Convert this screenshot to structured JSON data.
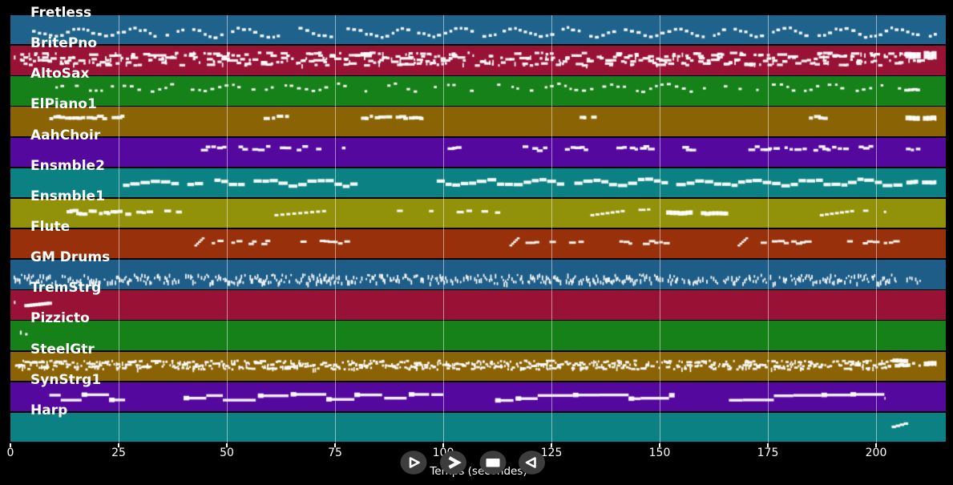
{
  "chart_data": {
    "type": "piano-roll",
    "title": "",
    "xlabel": "Temps (secondes)",
    "x_ticks": [
      0,
      25,
      50,
      75,
      100,
      125,
      150,
      175,
      200
    ],
    "xlim": [
      0,
      216
    ],
    "grid": true,
    "colors": {
      "background": "#000000",
      "note": "#ffffff",
      "grid": "rgba(255,255,255,0.5)"
    },
    "tracks": [
      {
        "name": "Fretless",
        "color": "#1f638c",
        "segments": [
          {
            "type": "melody",
            "t0": 5,
            "t1": 214,
            "y": 20,
            "amp": 5,
            "step": 1.3,
            "gap": 0.12,
            "w": 0.6,
            "h": 3.4
          }
        ]
      },
      {
        "name": "BritePno",
        "color": "#981236",
        "segments": [
          {
            "type": "ticks",
            "notes": [
              {
                "t": 0.8,
                "w": 2,
                "h": 5,
                "y": 12
              }
            ]
          },
          {
            "type": "chords",
            "t0": 2,
            "t1": 210.5,
            "y": 7,
            "spread": 16,
            "step": 1.0,
            "h": 3.2
          },
          {
            "type": "block",
            "t0": 206.8,
            "t1": 210.2,
            "y": 8,
            "h": 8
          },
          {
            "type": "block",
            "t0": 211,
            "t1": 213.8,
            "y": 7,
            "h": 10
          }
        ]
      },
      {
        "name": "AltoSax",
        "color": "#178119",
        "segments": [
          {
            "type": "melody",
            "t0": 9,
            "t1": 206,
            "y": 13,
            "amp": 4,
            "step": 1.5,
            "gap": 0.36,
            "w": 0.5,
            "h": 2.9
          },
          {
            "type": "block",
            "t0": 206.5,
            "t1": 210,
            "y": 15,
            "h": 3.5
          }
        ]
      },
      {
        "name": "ElPiano1",
        "color": "#8a6305",
        "segments": [
          {
            "type": "cluster",
            "t0": 9,
            "t1": 27,
            "y": 11,
            "h": 4,
            "step": 1.0,
            "jitter": 1.6,
            "gap": 0.15
          },
          {
            "type": "cluster",
            "t0": 58.5,
            "t1": 63.5,
            "y": 11,
            "h": 4,
            "step": 1.0,
            "jitter": 1.6,
            "gap": 0.15
          },
          {
            "type": "cluster",
            "t0": 81,
            "t1": 95,
            "y": 11,
            "h": 4,
            "step": 1.0,
            "jitter": 1.6,
            "gap": 0.15
          },
          {
            "type": "cluster",
            "t0": 131.5,
            "t1": 135,
            "y": 11,
            "h": 4,
            "step": 1.0,
            "jitter": 1.6,
            "gap": 0.1
          },
          {
            "type": "cluster",
            "t0": 184.5,
            "t1": 188,
            "y": 11,
            "h": 4,
            "step": 1.0,
            "jitter": 1.6,
            "gap": 0.1
          },
          {
            "type": "block",
            "t0": 206.8,
            "t1": 210,
            "y": 11,
            "h": 6
          },
          {
            "type": "block",
            "t0": 210.8,
            "t1": 213.8,
            "y": 11,
            "h": 6
          }
        ]
      },
      {
        "name": "AahChoir",
        "color": "#55089d",
        "segments": [
          {
            "type": "cluster",
            "t0": 44,
            "t1": 68,
            "y": 12,
            "h": 3.4,
            "step": 1.15,
            "jitter": 2.8,
            "gap": 0.3
          },
          {
            "type": "cluster",
            "t0": 69.5,
            "t1": 77,
            "y": 12,
            "h": 3.4,
            "step": 1.15,
            "jitter": 2.8,
            "gap": 0.3
          },
          {
            "type": "cluster",
            "t0": 101,
            "t1": 104,
            "y": 12,
            "h": 3.4,
            "step": 1.1,
            "jitter": 2,
            "gap": 0.2
          },
          {
            "type": "cluster",
            "t0": 117,
            "t1": 133.5,
            "y": 12,
            "h": 3.4,
            "step": 1.15,
            "jitter": 2.8,
            "gap": 0.3
          },
          {
            "type": "cluster",
            "t0": 140,
            "t1": 147.5,
            "y": 12,
            "h": 3.4,
            "step": 1.15,
            "jitter": 2.8,
            "gap": 0.3
          },
          {
            "type": "cluster",
            "t0": 154,
            "t1": 157.5,
            "y": 12,
            "h": 3.4,
            "step": 1.1,
            "jitter": 2,
            "gap": 0.25
          },
          {
            "type": "cluster",
            "t0": 170.5,
            "t1": 181.5,
            "y": 12,
            "h": 3.4,
            "step": 1.15,
            "jitter": 2.8,
            "gap": 0.3
          },
          {
            "type": "cluster",
            "t0": 183,
            "t1": 199,
            "y": 12,
            "h": 3.4,
            "step": 1.15,
            "jitter": 2.8,
            "gap": 0.3
          },
          {
            "type": "cluster",
            "t0": 206.9,
            "t1": 209.6,
            "y": 13,
            "h": 3.4,
            "step": 1.1,
            "jitter": 1,
            "gap": 0.2
          }
        ]
      },
      {
        "name": "Ensmble2",
        "color": "#0c8183",
        "segments": [
          {
            "type": "melody",
            "t0": 26,
            "t1": 79,
            "y": 16,
            "amp": 3.2,
            "step": 2.0,
            "gap": 0.07,
            "w": 0.92,
            "h": 4.2
          },
          {
            "type": "melody",
            "t0": 98.5,
            "t1": 206.3,
            "y": 16,
            "amp": 3.2,
            "step": 2.0,
            "gap": 0.07,
            "w": 0.92,
            "h": 4.2
          },
          {
            "type": "block",
            "t0": 207,
            "t1": 209.6,
            "y": 15,
            "h": 5
          },
          {
            "type": "block",
            "t0": 210.6,
            "t1": 213.8,
            "y": 15,
            "h": 5
          }
        ]
      },
      {
        "name": "Ensmble1",
        "color": "#92920a",
        "segments": [
          {
            "type": "cluster",
            "t0": 12,
            "t1": 27,
            "y": 15,
            "h": 4.2,
            "step": 0.85,
            "jitter": 2.4,
            "gap": 0.18
          },
          {
            "type": "cluster",
            "t0": 28,
            "t1": 40,
            "y": 14,
            "h": 3.6,
            "step": 1.3,
            "jitter": 2,
            "gap": 0.4
          },
          {
            "type": "slant",
            "t0": 61,
            "t1": 72,
            "y": 19,
            "rise": -5,
            "n": 9,
            "w": 5,
            "h": 3
          },
          {
            "type": "cluster",
            "t0": 85,
            "t1": 98.5,
            "y": 13,
            "h": 3,
            "step": 2.3,
            "jitter": 1.5,
            "gap": 0.45
          },
          {
            "type": "cluster",
            "t0": 101,
            "t1": 112,
            "y": 14,
            "h": 3.2,
            "step": 1.9,
            "jitter": 2,
            "gap": 0.4
          },
          {
            "type": "slant",
            "t0": 134,
            "t1": 141,
            "y": 19,
            "rise": -5,
            "n": 7,
            "w": 5,
            "h": 3
          },
          {
            "type": "cluster",
            "t0": 143.5,
            "t1": 148.5,
            "y": 13,
            "h": 2.8,
            "step": 2.2,
            "jitter": 1,
            "gap": 0.5
          },
          {
            "type": "block",
            "t0": 151.5,
            "t1": 157.5,
            "y": 15,
            "h": 5.5
          },
          {
            "type": "block",
            "t0": 159.5,
            "t1": 165.7,
            "y": 16,
            "h": 5
          },
          {
            "type": "slant",
            "t0": 187,
            "t1": 194,
            "y": 19,
            "rise": -5,
            "n": 7,
            "w": 5,
            "h": 3
          },
          {
            "type": "cluster",
            "t0": 197,
            "t1": 199.5,
            "y": 13,
            "h": 2.8,
            "step": 1.4,
            "jitter": 1,
            "gap": 0.35
          },
          {
            "type": "ticks",
            "notes": [
              {
                "t": 201.8,
                "w": 3,
                "h": 3,
                "y": 15
              }
            ]
          }
        ]
      },
      {
        "name": "Flute",
        "color": "#98310b",
        "segments": [
          {
            "type": "slant",
            "t0": 42.5,
            "t1": 44.2,
            "y": 19,
            "rise": -9,
            "n": 5,
            "w": 3.5,
            "h": 2.5
          },
          {
            "type": "cluster",
            "t0": 46.5,
            "t1": 59,
            "y": 15,
            "h": 3,
            "step": 1.15,
            "jitter": 2,
            "gap": 0.28
          },
          {
            "type": "cluster",
            "t0": 67,
            "t1": 78,
            "y": 15,
            "h": 3,
            "step": 1.15,
            "jitter": 2,
            "gap": 0.28
          },
          {
            "type": "slant",
            "t0": 115.3,
            "t1": 117,
            "y": 19,
            "rise": -9,
            "n": 5,
            "w": 3.5,
            "h": 2.5
          },
          {
            "type": "cluster",
            "t0": 119,
            "t1": 131.7,
            "y": 15,
            "h": 3,
            "step": 1.15,
            "jitter": 2,
            "gap": 0.28
          },
          {
            "type": "cluster",
            "t0": 140.7,
            "t1": 151.2,
            "y": 15,
            "h": 3,
            "step": 1.15,
            "jitter": 2,
            "gap": 0.28
          },
          {
            "type": "slant",
            "t0": 168,
            "t1": 169.8,
            "y": 19,
            "rise": -9,
            "n": 5,
            "w": 3.5,
            "h": 2.5
          },
          {
            "type": "cluster",
            "t0": 172.4,
            "t1": 183.5,
            "y": 15,
            "h": 3,
            "step": 1.15,
            "jitter": 2,
            "gap": 0.28
          },
          {
            "type": "cluster",
            "t0": 193.3,
            "t1": 204.4,
            "y": 15,
            "h": 3,
            "step": 1.15,
            "jitter": 2,
            "gap": 0.28
          }
        ]
      },
      {
        "name": "GM Drums",
        "color": "#1e5d88",
        "segments": [
          {
            "type": "drums",
            "t0": 0.5,
            "t1": 204.6,
            "y": 17,
            "spread": 11,
            "step": 0.32,
            "gap": 0.26
          },
          {
            "type": "drums",
            "t0": 207,
            "t1": 210.5,
            "y": 19,
            "spread": 8,
            "step": 0.5,
            "gap": 0.3
          }
        ]
      },
      {
        "name": "TremStrg",
        "color": "#981236",
        "segments": [
          {
            "type": "ticks",
            "notes": [
              {
                "t": 0.8,
                "w": 2,
                "h": 4,
                "y": 13
              }
            ]
          },
          {
            "type": "slant",
            "t0": 3.2,
            "t1": 8.4,
            "y": 17,
            "rise": -3,
            "n": 9,
            "w": 6.5,
            "h": 4
          }
        ]
      },
      {
        "name": "Pizzicto",
        "color": "#178119",
        "segments": [
          {
            "type": "ticks",
            "notes": [
              {
                "t": 2.2,
                "w": 2.2,
                "h": 5,
                "y": 12
              },
              {
                "t": 3.4,
                "w": 3,
                "h": 3,
                "y": 15
              }
            ]
          }
        ]
      },
      {
        "name": "SteelGtr",
        "color": "#8a6305",
        "segments": [
          {
            "type": "chords",
            "t0": 1,
            "t1": 203.5,
            "y": 10,
            "spread": 11,
            "step": 0.6,
            "h": 2.8
          },
          {
            "type": "block",
            "t0": 203.8,
            "t1": 207.3,
            "y": 9,
            "h": 5
          },
          {
            "type": "block",
            "t0": 204.3,
            "t1": 207.8,
            "y": 15,
            "h": 4.5
          },
          {
            "type": "ticks",
            "notes": [
              {
                "t": 208.3,
                "w": 4,
                "h": 3.5,
                "y": 13
              },
              {
                "t": 209.8,
                "w": 3,
                "h": 3,
                "y": 16
              }
            ]
          },
          {
            "type": "block",
            "t0": 211,
            "t1": 213.8,
            "y": 12,
            "h": 6
          }
        ]
      },
      {
        "name": "SynStrg1",
        "color": "#55089d",
        "segments": [
          {
            "type": "bars",
            "t0": 9,
            "t1": 26.5,
            "y": 17
          },
          {
            "type": "bars",
            "t0": 40,
            "t1": 100,
            "y": 17
          },
          {
            "type": "bars",
            "t0": 112,
            "t1": 152.5,
            "y": 17
          },
          {
            "type": "bars",
            "t0": 166,
            "t1": 202.2,
            "y": 17
          }
        ]
      },
      {
        "name": "Harp",
        "color": "#0c8183",
        "segments": [
          {
            "type": "slant",
            "t0": 203.6,
            "t1": 206.4,
            "y": 16,
            "rise": -4,
            "n": 4,
            "w": 5.5,
            "h": 3.2
          }
        ]
      }
    ]
  },
  "ui": {
    "controls": {
      "button_bg": "#3d3d3d",
      "buttons": [
        {
          "id": "play",
          "icon": "play-outline-icon"
        },
        {
          "id": "forward",
          "icon": "fast-forward-icon"
        },
        {
          "id": "stop",
          "icon": "stop-icon"
        },
        {
          "id": "backward",
          "icon": "rewind-icon"
        }
      ]
    }
  }
}
